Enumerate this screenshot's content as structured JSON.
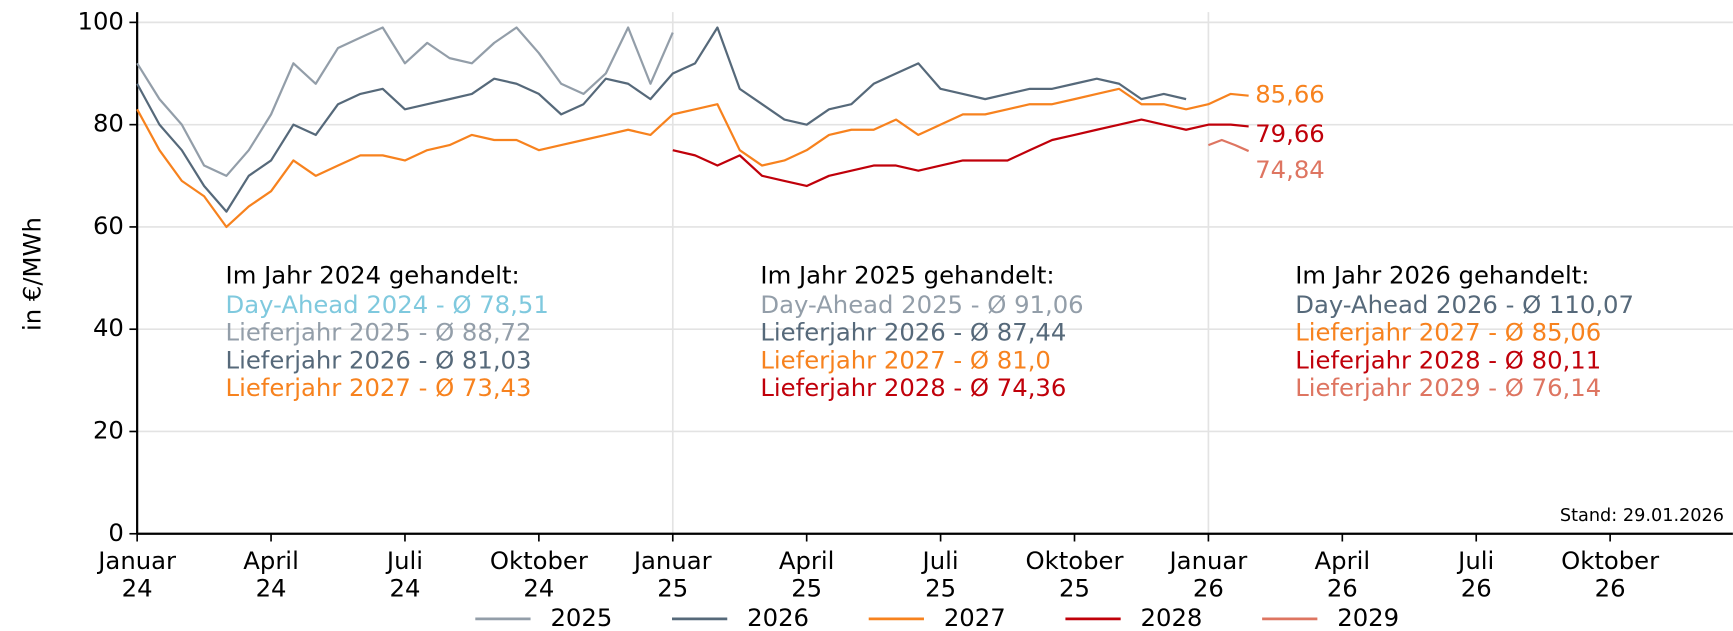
{
  "chart_data": {
    "type": "line",
    "y_label": "in €/MWh",
    "note": "Stand: 29.01.2026",
    "xlim": [
      0,
      35.75
    ],
    "ylim": [
      0,
      102
    ],
    "yticks": [
      0,
      20,
      40,
      60,
      80,
      100
    ],
    "xticks": [
      {
        "value": 0,
        "label": "Januar\n24"
      },
      {
        "value": 3,
        "label": "April\n24"
      },
      {
        "value": 6,
        "label": "Juli\n24"
      },
      {
        "value": 9,
        "label": "Oktober\n24"
      },
      {
        "value": 12,
        "label": "Januar\n25"
      },
      {
        "value": 15,
        "label": "April\n25"
      },
      {
        "value": 18,
        "label": "Juli\n25"
      },
      {
        "value": 21,
        "label": "Oktober\n25"
      },
      {
        "value": 24,
        "label": "Januar\n26"
      },
      {
        "value": 27,
        "label": "April\n26"
      },
      {
        "value": 30,
        "label": "Juli\n26"
      },
      {
        "value": 33,
        "label": "Oktober\n26"
      }
    ],
    "grid": true,
    "xgrid": [
      12,
      24
    ],
    "legend": "bottom",
    "series": [
      {
        "name": "2025",
        "color": "#939ea9",
        "x": [
          0,
          0.5,
          1,
          1.5,
          2,
          2.5,
          3,
          3.5,
          4,
          4.5,
          5,
          5.5,
          6,
          6.5,
          7,
          7.5,
          8,
          8.5,
          9,
          9.5,
          10,
          10.5,
          11,
          11.5,
          12
        ],
        "values": [
          92,
          85,
          80,
          72,
          70,
          75,
          82,
          92,
          88,
          95,
          97,
          99,
          92,
          96,
          93,
          92,
          96,
          99,
          94,
          88,
          86,
          90,
          99,
          88,
          98
        ]
      },
      {
        "name": "2026",
        "color": "#56697a",
        "x": [
          0,
          0.5,
          1,
          1.5,
          2,
          2.5,
          3,
          3.5,
          4,
          4.5,
          5,
          5.5,
          6,
          6.5,
          7,
          7.5,
          8,
          8.5,
          9,
          9.5,
          10,
          10.5,
          11,
          11.5,
          12,
          12.5,
          13,
          13.5,
          14,
          14.5,
          15,
          15.5,
          16,
          16.5,
          17,
          17.5,
          18,
          18.5,
          19,
          19.5,
          20,
          20.5,
          21,
          21.5,
          22,
          22.5,
          23,
          23.5
        ],
        "values": [
          88,
          80,
          75,
          68,
          63,
          70,
          73,
          80,
          78,
          84,
          86,
          87,
          83,
          84,
          85,
          86,
          89,
          88,
          86,
          82,
          84,
          89,
          88,
          85,
          90,
          92,
          99,
          87,
          84,
          81,
          80,
          83,
          84,
          88,
          90,
          92,
          87,
          86,
          85,
          86,
          87,
          87,
          88,
          89,
          88,
          85,
          86,
          85
        ]
      },
      {
        "name": "2027",
        "color": "#f7821e",
        "x": [
          0,
          0.5,
          1,
          1.5,
          2,
          2.5,
          3,
          3.5,
          4,
          4.5,
          5,
          5.5,
          6,
          6.5,
          7,
          7.5,
          8,
          8.5,
          9,
          9.5,
          10,
          10.5,
          11,
          11.5,
          12,
          12.5,
          13,
          13.5,
          14,
          14.5,
          15,
          15.5,
          16,
          16.5,
          17,
          17.5,
          18,
          18.5,
          19,
          19.5,
          20,
          20.5,
          21,
          21.5,
          22,
          22.5,
          23,
          23.5,
          24,
          24.5,
          24.9
        ],
        "values": [
          83,
          75,
          69,
          66,
          60,
          64,
          67,
          73,
          70,
          72,
          74,
          74,
          73,
          75,
          76,
          78,
          77,
          77,
          75,
          76,
          77,
          78,
          79,
          78,
          82,
          83,
          84,
          75,
          72,
          73,
          75,
          78,
          79,
          79,
          81,
          78,
          80,
          82,
          82,
          83,
          84,
          84,
          85,
          86,
          87,
          84,
          84,
          83,
          84,
          86,
          85.66
        ],
        "value_labels": [
          null,
          null,
          null,
          null,
          null,
          null,
          null,
          null,
          null,
          null,
          null,
          null,
          null,
          null,
          null,
          null,
          null,
          null,
          null,
          null,
          null,
          null,
          null,
          null,
          null,
          null,
          null,
          null,
          null,
          null,
          null,
          null,
          null,
          null,
          null,
          null,
          null,
          null,
          null,
          null,
          null,
          null,
          null,
          null,
          null,
          null,
          null,
          null,
          null,
          null,
          "85,66"
        ]
      },
      {
        "name": "2028",
        "color": "#c0000a",
        "x": [
          12,
          12.5,
          13,
          13.5,
          14,
          14.5,
          15,
          15.5,
          16,
          16.5,
          17,
          17.5,
          18,
          18.5,
          19,
          19.5,
          20,
          20.5,
          21,
          21.5,
          22,
          22.5,
          23,
          23.5,
          24,
          24.5,
          24.9
        ],
        "values": [
          75,
          74,
          72,
          74,
          70,
          69,
          68,
          70,
          71,
          72,
          72,
          71,
          72,
          73,
          73,
          73,
          75,
          77,
          78,
          79,
          80,
          81,
          80,
          79,
          80,
          80,
          79.66
        ],
        "value_labels": [
          null,
          null,
          null,
          null,
          null,
          null,
          null,
          null,
          null,
          null,
          null,
          null,
          null,
          null,
          null,
          null,
          null,
          null,
          null,
          null,
          null,
          null,
          null,
          null,
          null,
          null,
          "79,66"
        ]
      },
      {
        "name": "2029",
        "color": "#de7561",
        "x": [
          24,
          24.3,
          24.6,
          24.9
        ],
        "values": [
          76,
          77,
          76,
          74.84
        ],
        "value_labels": [
          null,
          null,
          null,
          "74,84"
        ]
      }
    ],
    "annotations": [
      {
        "title": "Im Jahr 2024 gehandelt:",
        "lines": [
          {
            "text": "Day-Ahead 2024 - Ø 78,51",
            "color": "#7fc9de"
          },
          {
            "text": "Lieferjahr 2025 - Ø 88,72",
            "color": "#939ea9"
          },
          {
            "text": "Lieferjahr 2026 - Ø 81,03",
            "color": "#56697a"
          },
          {
            "text": "Lieferjahr 2027 - Ø 73,43",
            "color": "#f7821e"
          }
        ]
      },
      {
        "title": "Im Jahr 2025 gehandelt:",
        "lines": [
          {
            "text": "Day-Ahead 2025 - Ø 91,06",
            "color": "#939ea9"
          },
          {
            "text": "Lieferjahr 2026 - Ø 87,44",
            "color": "#56697a"
          },
          {
            "text": "Lieferjahr 2027 - Ø 81,0",
            "color": "#f7821e"
          },
          {
            "text": "Lieferjahr 2028 - Ø 74,36",
            "color": "#c0000a"
          }
        ]
      },
      {
        "title": "Im Jahr 2026 gehandelt:",
        "lines": [
          {
            "text": "Day-Ahead 2026 - Ø 110,07",
            "color": "#56697a"
          },
          {
            "text": "Lieferjahr 2027 - Ø 85,06",
            "color": "#f7821e"
          },
          {
            "text": "Lieferjahr 2028 - Ø 80,11",
            "color": "#c0000a"
          },
          {
            "text": "Lieferjahr 2029 - Ø 76,14",
            "color": "#de7561"
          }
        ]
      }
    ]
  }
}
